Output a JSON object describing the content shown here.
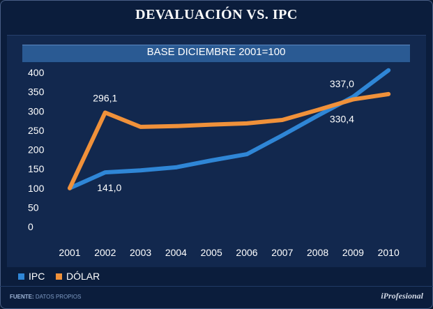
{
  "title": "DEVALUACIÓN VS. IPC",
  "subtitle": "BASE DICIEMBRE 2001=100",
  "legend": [
    {
      "label": "IPC",
      "color": "#2f86d6"
    },
    {
      "label": "DÓLAR",
      "color": "#f0913a"
    }
  ],
  "source_label": "FUENTE:",
  "source_text": "DATOS PROPIOS",
  "brand": "iProfesional",
  "chart_data": {
    "type": "line",
    "title": "BASE DICIEMBRE 2001=100",
    "categories": [
      "2001",
      "2002",
      "2003",
      "2004",
      "2005",
      "2006",
      "2007",
      "2008",
      "2009",
      "2010"
    ],
    "yticks": [
      "0",
      "50",
      "100",
      "150",
      "200",
      "250",
      "300",
      "350",
      "400"
    ],
    "ylim": [
      0,
      400
    ],
    "series": [
      {
        "name": "IPC",
        "color": "#2f86d6",
        "values": [
          100,
          141.0,
          146,
          154,
          172,
          188,
          237,
          288,
          337.0,
          406
        ]
      },
      {
        "name": "DÓLAR",
        "color": "#f0913a",
        "values": [
          100,
          296.1,
          259,
          261,
          265,
          268,
          277,
          303,
          330.4,
          344
        ]
      }
    ],
    "annotations": [
      {
        "series": "DÓLAR",
        "index": 1,
        "text": "296,1"
      },
      {
        "series": "IPC",
        "index": 1,
        "text": "141,0"
      },
      {
        "series": "IPC",
        "index": 8,
        "text": "337,0"
      },
      {
        "series": "DÓLAR",
        "index": 8,
        "text": "330,4"
      }
    ]
  }
}
